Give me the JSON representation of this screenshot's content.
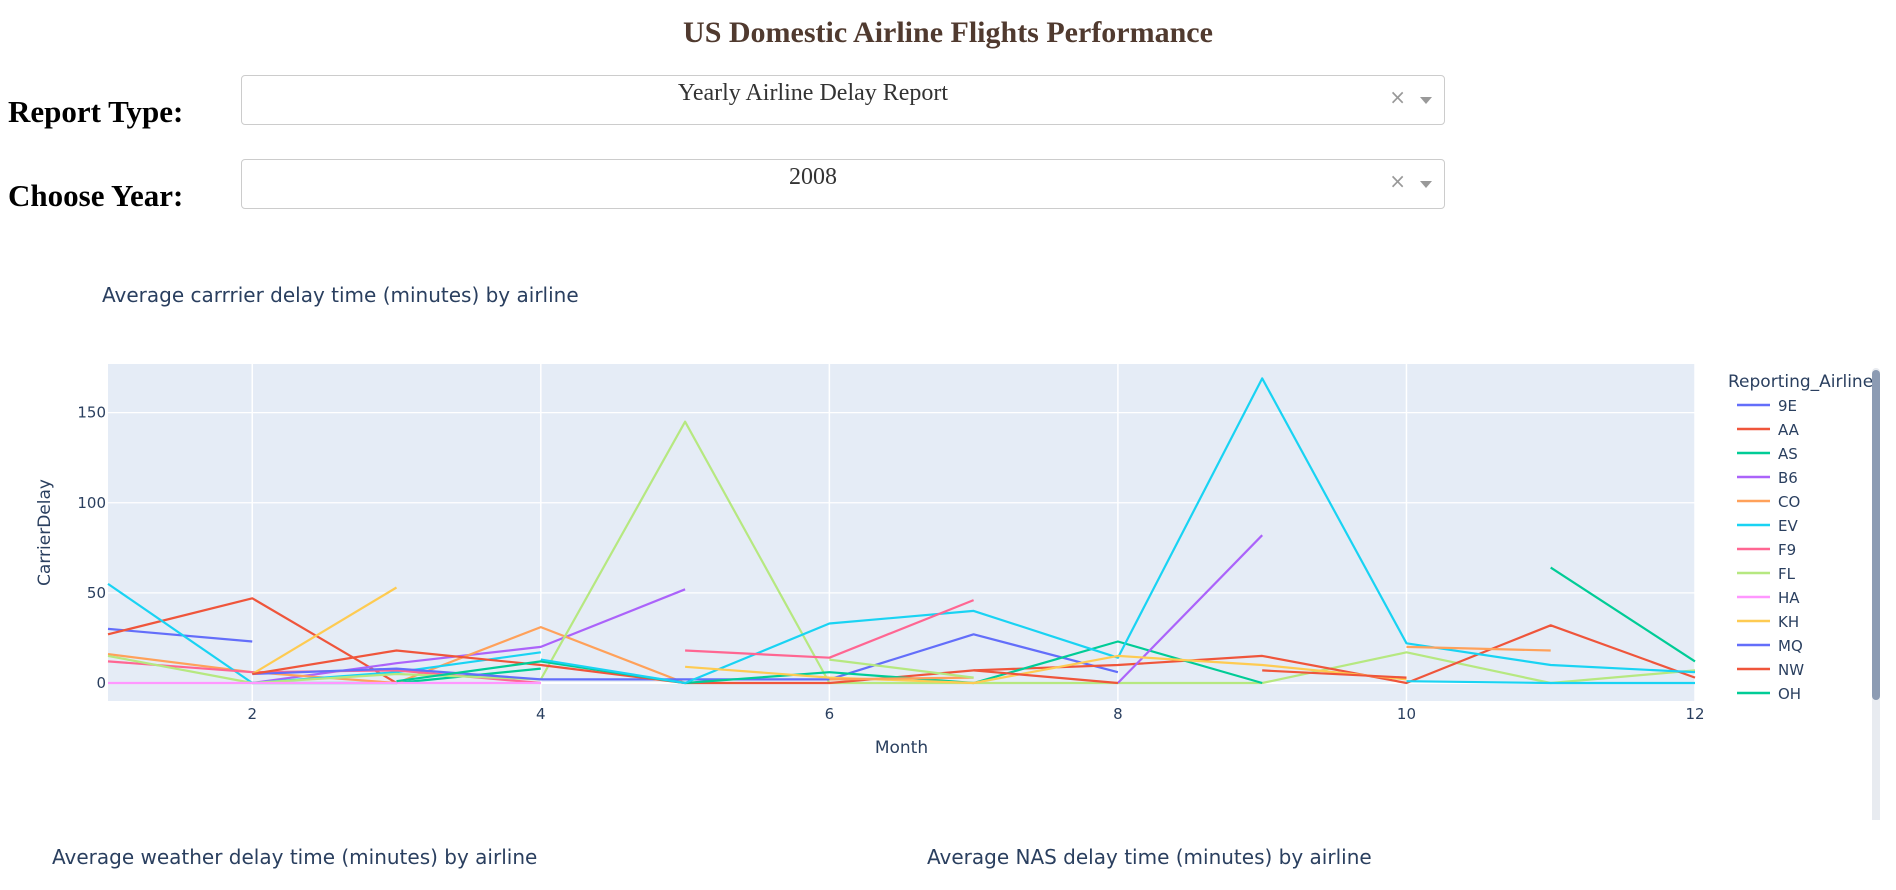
{
  "page": {
    "title": "US Domestic Airline Flights Performance"
  },
  "controls": {
    "report_type": {
      "label": "Report Type:",
      "value": "Yearly Airline Delay Report",
      "clear": "×"
    },
    "year": {
      "label": "Choose Year:",
      "value": "2008",
      "clear": "×"
    }
  },
  "chart_data": {
    "type": "line",
    "title": "Average carrrier delay time (minutes) by airline",
    "xlabel": "Month",
    "ylabel": "CarrierDelay",
    "xlim": [
      1,
      12
    ],
    "ylim": [
      -10,
      177
    ],
    "xticks": [
      2,
      4,
      6,
      8,
      10,
      12
    ],
    "yticks": [
      0,
      50,
      100,
      150
    ],
    "grid": true,
    "legend_title": "Reporting_Airline",
    "legend_position": "right",
    "series": [
      {
        "name": "9E",
        "color": "#636efa",
        "points": [
          [
            1,
            30
          ],
          [
            2,
            23
          ]
        ]
      },
      {
        "name": "AA",
        "color": "#EF553B",
        "points": [
          [
            1,
            27
          ],
          [
            2,
            47
          ],
          [
            3,
            0
          ]
        ]
      },
      {
        "name": "AS",
        "color": "#00cc96",
        "points": [
          [
            2,
            0
          ],
          [
            3,
            0
          ],
          [
            4,
            8
          ]
        ]
      },
      {
        "name": "B6",
        "color": "#ab63fa",
        "points": [
          [
            2,
            0
          ],
          [
            3,
            11
          ],
          [
            4,
            20
          ],
          [
            5,
            52
          ]
        ]
      },
      {
        "name": "CO",
        "color": "#FFA15A",
        "points": [
          [
            1,
            16
          ],
          [
            2,
            6
          ],
          [
            3,
            0
          ],
          [
            4,
            31
          ],
          [
            5,
            0
          ]
        ]
      },
      {
        "name": "EV",
        "color": "#19d3f3",
        "points": [
          [
            1,
            55
          ],
          [
            2,
            0
          ],
          [
            3,
            6
          ],
          [
            4,
            17
          ]
        ]
      },
      {
        "name": "F9",
        "color": "#FF6692",
        "points": [
          [
            1,
            12
          ],
          [
            2,
            6
          ],
          [
            3,
            7
          ],
          [
            4,
            0
          ]
        ]
      },
      {
        "name": "FL",
        "color": "#B6E880",
        "points": [
          [
            1,
            15
          ],
          [
            2,
            0
          ],
          [
            3,
            5
          ],
          [
            4,
            2
          ],
          [
            5,
            145
          ],
          [
            6,
            0
          ],
          [
            7,
            0
          ],
          [
            8,
            0
          ],
          [
            9,
            0
          ],
          [
            10,
            17
          ],
          [
            11,
            0
          ],
          [
            12,
            7
          ]
        ]
      },
      {
        "name": "HA",
        "color": "#FF97FF",
        "points": [
          [
            1,
            0
          ],
          [
            2,
            0
          ],
          [
            3,
            0
          ],
          [
            4,
            0
          ]
        ]
      },
      {
        "name": "KH",
        "color": "#FECB52",
        "points": [
          [
            2,
            5
          ],
          [
            3,
            53
          ]
        ]
      },
      {
        "name": "MQ",
        "color": "#636efa",
        "points": [
          [
            2,
            5
          ],
          [
            3,
            8
          ],
          [
            4,
            2
          ],
          [
            6,
            2
          ],
          [
            7,
            27
          ],
          [
            8,
            6
          ]
        ]
      },
      {
        "name": "NW",
        "color": "#EF553B",
        "points": [
          [
            2,
            5
          ],
          [
            3,
            18
          ],
          [
            4,
            10
          ],
          [
            5,
            0
          ],
          [
            6,
            0
          ],
          [
            7,
            7
          ],
          [
            8,
            10
          ],
          [
            9,
            15
          ],
          [
            10,
            0
          ],
          [
            11,
            32
          ],
          [
            12,
            3
          ]
        ]
      },
      {
        "name": "OH",
        "color": "#00cc96",
        "points": [
          [
            3,
            1
          ],
          [
            4,
            12
          ],
          [
            5,
            0
          ],
          [
            6,
            6
          ],
          [
            7,
            0
          ],
          [
            8,
            23
          ],
          [
            9,
            0
          ]
        ]
      },
      {
        "name": "",
        "color": "#00cc96",
        "points": [
          [
            11,
            64
          ],
          [
            12,
            12
          ]
        ]
      },
      {
        "name": "",
        "color": "#19d3f3",
        "points": [
          [
            4,
            13
          ],
          [
            5,
            0
          ],
          [
            6,
            33
          ],
          [
            7,
            40
          ],
          [
            8,
            14
          ],
          [
            9,
            169
          ],
          [
            10,
            22
          ],
          [
            11,
            10
          ],
          [
            12,
            6
          ]
        ]
      },
      {
        "name": "",
        "color": "#19d3f3",
        "points": [
          [
            10,
            1
          ],
          [
            11,
            0
          ],
          [
            12,
            0
          ]
        ]
      },
      {
        "name": "",
        "color": "#ab63fa",
        "points": [
          [
            8,
            0
          ],
          [
            9,
            82
          ]
        ]
      },
      {
        "name": "",
        "color": "#FF6692",
        "points": [
          [
            5,
            18
          ],
          [
            6,
            14
          ],
          [
            7,
            46
          ]
        ]
      },
      {
        "name": "",
        "color": "#FECB52",
        "points": [
          [
            5,
            9
          ],
          [
            6,
            3
          ],
          [
            7,
            0
          ],
          [
            8,
            15
          ],
          [
            9,
            10
          ],
          [
            10,
            2
          ]
        ]
      },
      {
        "name": "",
        "color": "#FFA15A",
        "points": [
          [
            6,
            2
          ],
          [
            7,
            3
          ]
        ]
      },
      {
        "name": "",
        "color": "#FFA15A",
        "points": [
          [
            10,
            20
          ],
          [
            11,
            18
          ]
        ]
      },
      {
        "name": "",
        "color": "#B6E880",
        "points": [
          [
            6,
            13
          ],
          [
            7,
            3
          ]
        ]
      },
      {
        "name": "",
        "color": "#EF553B",
        "points": [
          [
            7,
            7
          ],
          [
            8,
            0
          ]
        ]
      },
      {
        "name": "",
        "color": "#EF553B",
        "points": [
          [
            9,
            7
          ],
          [
            10,
            3
          ]
        ]
      }
    ]
  },
  "lower_charts": {
    "weather_title": "Average weather delay time (minutes) by airline",
    "nas_title": "Average NAS delay time (minutes) by airline"
  }
}
